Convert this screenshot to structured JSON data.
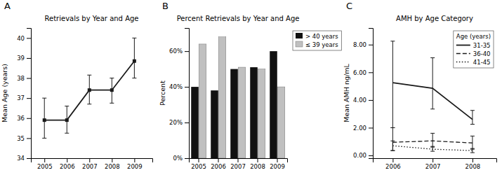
{
  "chart_data": [
    {
      "type": "line",
      "title": "Retrievals by Year and Age",
      "annotations": [
        "A"
      ],
      "ylabel": "Mean Age (years)",
      "x": [
        2005,
        2006,
        2007,
        2008,
        2009
      ],
      "xlim": [
        2004.4,
        2009.8
      ],
      "xticks": [
        2005,
        2006,
        2007,
        2008,
        2009
      ],
      "ylim": [
        34,
        40.5
      ],
      "yticks": [
        34,
        35,
        36,
        37,
        38,
        39,
        40
      ],
      "grid": false,
      "series": [
        {
          "color": "#1a1a1a",
          "marker": "square",
          "line_style": "solid",
          "values": [
            35.9,
            35.9,
            37.4,
            37.4,
            38.85
          ],
          "error_lo": [
            0.9,
            0.65,
            0.7,
            0.65,
            0.85
          ],
          "error_hi": [
            1.1,
            0.7,
            0.75,
            0.6,
            1.15
          ]
        }
      ]
    },
    {
      "type": "bar",
      "title": "Percent Retrievals by Year and Age",
      "annotations": [
        "B"
      ],
      "ylabel": "Percent",
      "categories": [
        "2005",
        "2006",
        "2007",
        "2008",
        "2009"
      ],
      "ylim": [
        0,
        73
      ],
      "yticks": [
        {
          "value": 0,
          "label": "0%"
        },
        {
          "value": 20,
          "label": "20%"
        },
        {
          "value": 40,
          "label": "40%"
        },
        {
          "value": 60,
          "label": "60%"
        }
      ],
      "grid": false,
      "legend": "upper right",
      "series": [
        {
          "name": "> 40 years",
          "color": "#111111",
          "values": [
            40,
            38,
            50,
            51,
            60
          ]
        },
        {
          "name": "≤ 39 years",
          "color": "#c0c0c0",
          "values": [
            64,
            68,
            51,
            50,
            40
          ]
        }
      ]
    },
    {
      "type": "line",
      "title": "AMH by Age Category",
      "annotations": [
        "C"
      ],
      "ylabel": "Mean AMH ng/mL",
      "x": [
        2006,
        2007,
        2008
      ],
      "xlim": [
        2005.5,
        2008.6
      ],
      "xticks": [
        2006,
        2007,
        2008
      ],
      "ylim": [
        -0.2,
        9.2
      ],
      "yticks": [
        {
          "value": 0,
          "label": "0.00"
        },
        {
          "value": 2,
          "label": "2.00"
        },
        {
          "value": 4,
          "label": "4.00"
        },
        {
          "value": 6,
          "label": "6.00"
        },
        {
          "value": 8,
          "label": "8.00"
        }
      ],
      "grid": false,
      "legend": "upper right",
      "legend_title": "Age (years)",
      "series": [
        {
          "name": "31-35",
          "color": "#1a1a1a",
          "line_style": "solid",
          "values": [
            5.25,
            4.85,
            2.6
          ],
          "error_lo": [
            3.25,
            1.5,
            0.35
          ],
          "error_hi": [
            3.0,
            2.2,
            0.65
          ]
        },
        {
          "name": "36-40",
          "color": "#1a1a1a",
          "line_style": "dashed",
          "values": [
            0.95,
            1.05,
            0.9
          ],
          "error_lo": [
            0.6,
            0.45,
            0.45
          ],
          "error_hi": [
            1.05,
            0.55,
            0.5
          ]
        },
        {
          "name": "41-45",
          "color": "#1a1a1a",
          "line_style": "dotted",
          "values": [
            0.7,
            0.45,
            0.35
          ],
          "error_lo": [
            0.35,
            0.15,
            0.15
          ],
          "error_hi": [
            0.35,
            0.2,
            0.15
          ]
        }
      ]
    }
  ]
}
